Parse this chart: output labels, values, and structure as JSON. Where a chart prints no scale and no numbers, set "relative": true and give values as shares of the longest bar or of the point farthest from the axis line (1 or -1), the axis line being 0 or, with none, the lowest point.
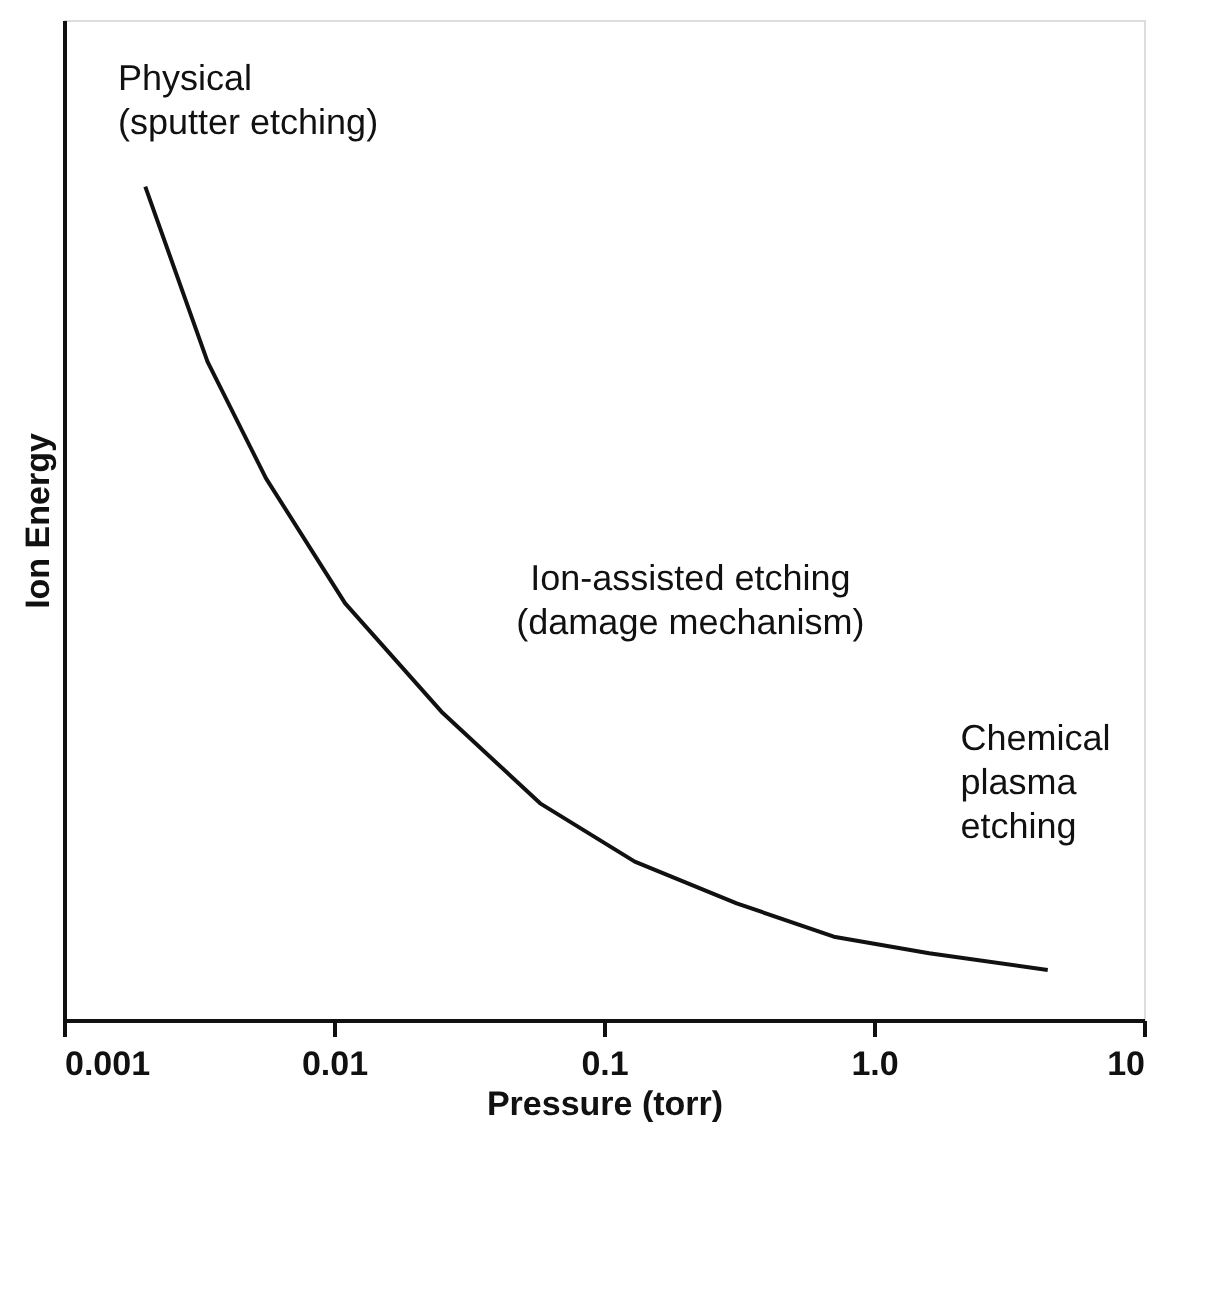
{
  "chart_data": {
    "type": "line",
    "relative": true,
    "xlabel": "Pressure (torr)",
    "ylabel": "Ion Energy",
    "log": "x",
    "xlim": [
      0.001,
      10
    ],
    "xticks": [
      0.001,
      0.01,
      0.1,
      {
        "value": 1,
        "label": "1.0"
      },
      10
    ],
    "x": [
      0.002,
      0.0034,
      0.0056,
      0.011,
      0.025,
      0.058,
      0.13,
      0.31,
      0.71,
      1.6,
      4.4
    ],
    "series": [
      {
        "color": "#111111",
        "values": [
          1,
          0.79,
          0.65,
          0.5,
          0.37,
          0.26,
          0.19,
          0.14,
          0.1,
          0.08,
          0.06
        ]
      }
    ],
    "annotations": [
      "Physical\n(sputter etching)",
      "Ion-assisted etching\n(damage mechanism)",
      "Chemical\nplasma\netching"
    ],
    "marker": "none",
    "line_style": "solid"
  }
}
